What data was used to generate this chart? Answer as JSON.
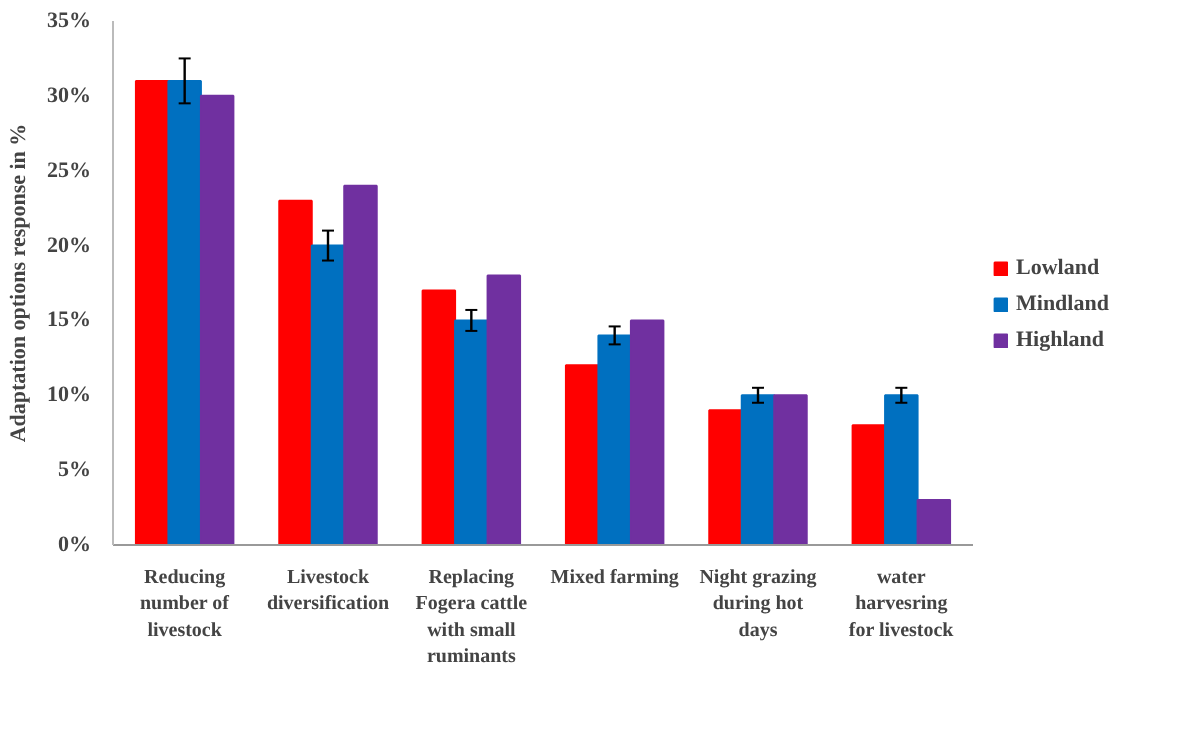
{
  "chart_data": {
    "type": "bar",
    "ylabel": "Adaptation options response in %",
    "categories": [
      "Reducing number of livestock",
      "Livestock diversification",
      "Replacing Fogera cattle with small ruminants",
      "Mixed farming",
      "Night grazing during hot days",
      "water harvesring for livestock"
    ],
    "series": [
      {
        "name": "Lowland",
        "color": "#ff0000",
        "values": [
          31,
          23,
          17,
          12,
          9,
          8
        ]
      },
      {
        "name": "Mindland",
        "color": "#0070c0",
        "values": [
          31,
          20,
          15,
          14,
          10,
          10
        ],
        "errors": [
          1.5,
          1,
          0.7,
          0.6,
          0.5,
          0.5
        ]
      },
      {
        "name": "Highland",
        "color": "#7030a0",
        "values": [
          30,
          24,
          18,
          15,
          10,
          3
        ]
      }
    ],
    "ylim": [
      0,
      35
    ],
    "yticks": [
      {
        "value": 0,
        "label": "0%"
      },
      {
        "value": 5,
        "label": "5%"
      },
      {
        "value": 10,
        "label": "10%"
      },
      {
        "value": 15,
        "label": "15%"
      },
      {
        "value": 20,
        "label": "20%"
      },
      {
        "value": 25,
        "label": "25%"
      },
      {
        "value": 30,
        "label": "30%"
      },
      {
        "value": 35,
        "label": "35%"
      }
    ],
    "grid": false,
    "legend": "right"
  }
}
